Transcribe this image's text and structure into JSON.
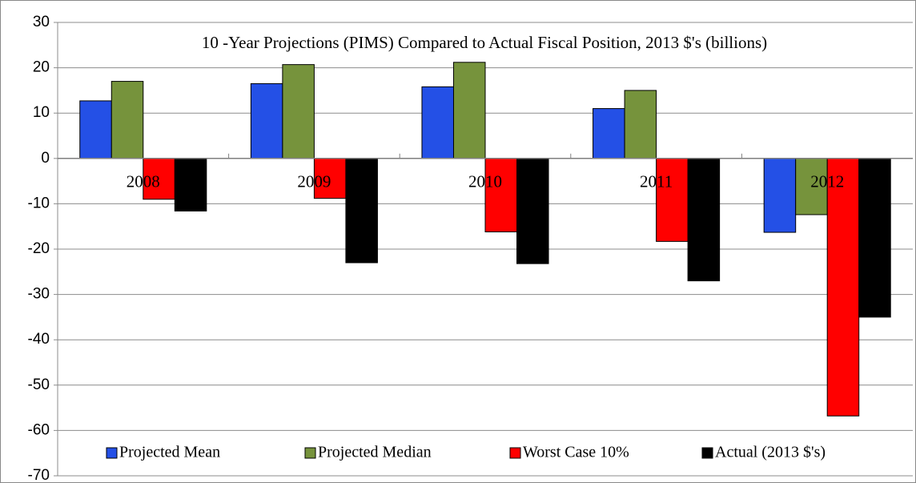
{
  "chart_data": {
    "type": "bar",
    "title": "10 -Year Projections (PIMS) Compared to Actual Fiscal Position, 2013 $'s (billions)",
    "categories": [
      "2008",
      "2009",
      "2010",
      "2011",
      "2012"
    ],
    "series": [
      {
        "name": "Projected Mean",
        "color": "#2450e6",
        "values": [
          12.7,
          16.5,
          15.8,
          11,
          -16.3
        ]
      },
      {
        "name": "Projected Median",
        "color": "#76933c",
        "values": [
          17,
          20.7,
          21.2,
          15,
          -12.4
        ]
      },
      {
        "name": "Worst Case 10%",
        "color": "#ff0000",
        "values": [
          -9,
          -8.8,
          -16.2,
          -18.3,
          -56.8
        ]
      },
      {
        "name": "Actual (2013 $'s)",
        "color": "#000000",
        "values": [
          -11.6,
          -23,
          -23.2,
          -27,
          -35
        ]
      }
    ],
    "ylim": [
      -70,
      30
    ],
    "yticks": [
      -70,
      -60,
      -50,
      -40,
      -30,
      -20,
      -10,
      0,
      10,
      20,
      30
    ],
    "grid": true,
    "legend": "bottom"
  }
}
